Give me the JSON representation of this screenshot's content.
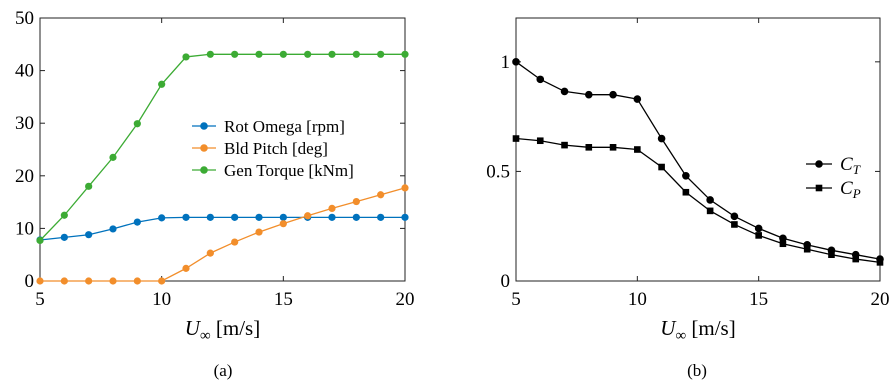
{
  "chart_data": [
    {
      "type": "line",
      "caption": "(a)",
      "xlabel": "U∞ [m/s]",
      "x": [
        5,
        6,
        7,
        8,
        9,
        10,
        11,
        12,
        13,
        14,
        15,
        16,
        17,
        18,
        19,
        20
      ],
      "xlim": [
        5,
        20
      ],
      "ylim": [
        0,
        50
      ],
      "xticks": [
        "5",
        "10",
        "15",
        "20"
      ],
      "yticks": [
        "0",
        "10",
        "20",
        "30",
        "40",
        "50"
      ],
      "legend_position": "center-right",
      "series": [
        {
          "name": "Rot Omega [rpm]",
          "color": "#0072bd",
          "marker": "circle",
          "values": [
            7.8,
            8.3,
            8.8,
            9.9,
            11.2,
            12.0,
            12.1,
            12.1,
            12.1,
            12.1,
            12.1,
            12.1,
            12.1,
            12.1,
            12.1,
            12.1
          ]
        },
        {
          "name": "Bld Pitch [deg]",
          "color": "#f28e2b",
          "marker": "circle",
          "values": [
            0,
            0,
            0,
            0,
            0,
            0,
            2.4,
            5.3,
            7.4,
            9.3,
            10.9,
            12.4,
            13.8,
            15.1,
            16.4,
            17.7
          ]
        },
        {
          "name": "Gen Torque [kNm]",
          "color": "#3cab34",
          "marker": "circle",
          "values": [
            7.7,
            12.5,
            18.0,
            23.5,
            29.9,
            37.4,
            42.6,
            43.1,
            43.1,
            43.1,
            43.1,
            43.1,
            43.1,
            43.1,
            43.1,
            43.1
          ]
        }
      ]
    },
    {
      "type": "line",
      "caption": "(b)",
      "xlabel": "U∞ [m/s]",
      "x": [
        5,
        6,
        7,
        8,
        9,
        10,
        11,
        12,
        13,
        14,
        15,
        16,
        17,
        18,
        19,
        20
      ],
      "xlim": [
        5,
        20
      ],
      "ylim": [
        0,
        1.2
      ],
      "xticks": [
        "5",
        "10",
        "15",
        "20"
      ],
      "yticks": [
        "0",
        "0.5",
        "1"
      ],
      "legend_position": "right",
      "series": [
        {
          "name": "C_T",
          "color": "#000000",
          "marker": "circle",
          "values": [
            1.0,
            0.92,
            0.865,
            0.85,
            0.85,
            0.83,
            0.65,
            0.48,
            0.37,
            0.295,
            0.24,
            0.195,
            0.165,
            0.14,
            0.12,
            0.1
          ]
        },
        {
          "name": "C_P",
          "color": "#000000",
          "marker": "square",
          "values": [
            0.65,
            0.64,
            0.62,
            0.61,
            0.61,
            0.6,
            0.52,
            0.405,
            0.32,
            0.258,
            0.208,
            0.17,
            0.145,
            0.12,
            0.1,
            0.085
          ]
        }
      ]
    }
  ]
}
